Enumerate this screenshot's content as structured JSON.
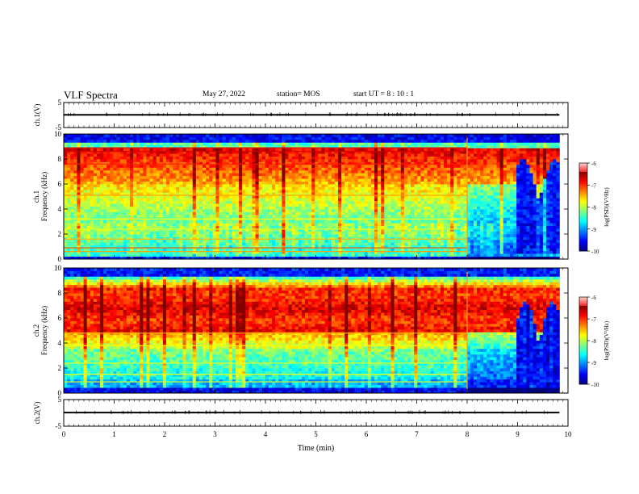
{
  "header": {
    "title": "VLF Spectra",
    "date": "May 27, 2022",
    "station": "station= MOS",
    "start": "start  UT =   8 : 10 : 1"
  },
  "chart_data": [
    {
      "type": "line",
      "id": "ch1-waveform",
      "ylabel": "ch.1(V)",
      "ylim": [
        -5,
        5
      ],
      "y_ticks": [
        "5",
        "-5"
      ],
      "series": [
        {
          "values_note": "flat",
          "x": [
            0,
            9.83
          ],
          "y": [
            0.1,
            0.1
          ]
        }
      ]
    },
    {
      "type": "heatmap",
      "id": "ch1-spectrogram",
      "ylabel_channel": "ch.1",
      "ylabel": "Frequency  (kHz)",
      "ylim": [
        0,
        10
      ],
      "y_ticks": [
        "0",
        "2",
        "4",
        "6",
        "8",
        "10"
      ],
      "colorbar": {
        "label": "log(PSD)(V²/Hz)",
        "range": [
          -10,
          -6
        ],
        "ticks": [
          "-6",
          "-7",
          "-8",
          "-9",
          "-10"
        ]
      }
    },
    {
      "type": "heatmap",
      "id": "ch2-spectrogram",
      "ylabel_channel": "ch.2",
      "ylabel": "Frequency  (kHz)",
      "ylim": [
        0,
        10
      ],
      "y_ticks": [
        "0",
        "2",
        "4",
        "6",
        "8",
        "10"
      ],
      "colorbar": {
        "label": "log(PSD)(V²/Hz)",
        "range": [
          -10,
          -6
        ],
        "ticks": [
          "-6",
          "-7",
          "-8",
          "-9",
          "-10"
        ]
      }
    },
    {
      "type": "line",
      "id": "ch2-waveform",
      "ylabel": "ch.2(V)",
      "ylim": [
        -5,
        5
      ],
      "y_ticks": [
        "5",
        "-5"
      ],
      "series": [
        {
          "x": [
            0,
            9.83
          ],
          "y": [
            0.1,
            0.1
          ]
        }
      ]
    }
  ],
  "x_axis": {
    "label": "Time  (min)",
    "xlim": [
      0,
      10
    ],
    "ticks": [
      "0",
      "1",
      "2",
      "3",
      "4",
      "5",
      "6",
      "7",
      "8",
      "9",
      "10"
    ]
  }
}
